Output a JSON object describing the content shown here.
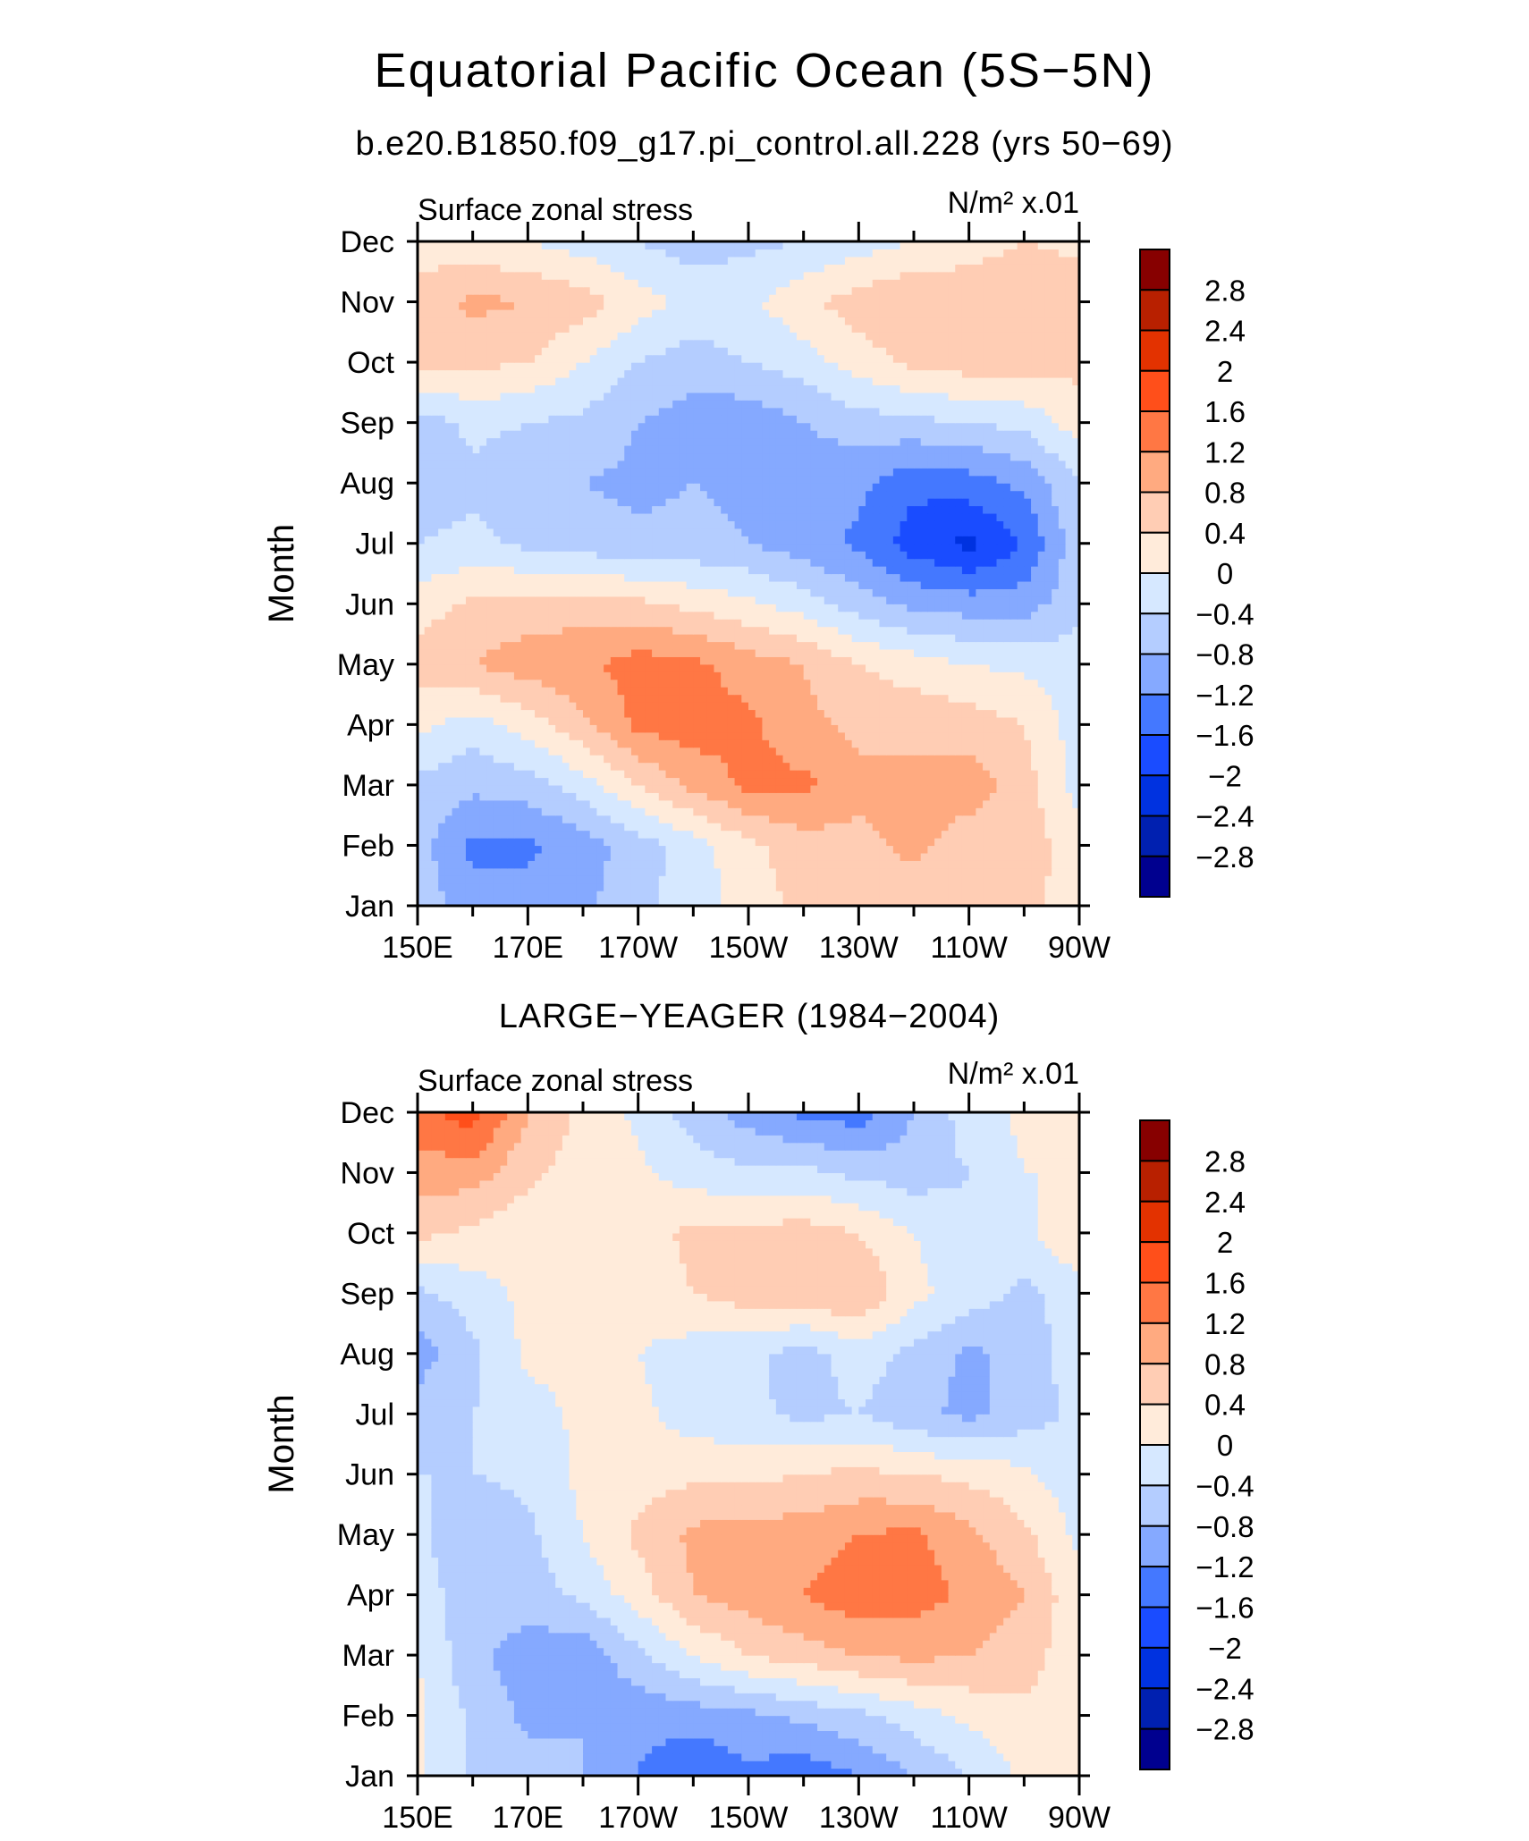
{
  "title": "Equatorial Pacific Ocean (5S−5N)",
  "subtitle": "b.e20.B1850.f09_g17.pi_control.all.228 (yrs 50−69)",
  "colorbar": {
    "levels": [
      "2.8",
      "2.4",
      "2",
      "1.6",
      "1.2",
      "0.8",
      "0.4",
      "0",
      "−0.4",
      "−0.8",
      "−1.2",
      "−1.6",
      "−2",
      "−2.4",
      "−2.8"
    ],
    "level_values": [
      -2.8,
      -2.4,
      -2,
      -1.6,
      -1.2,
      -0.8,
      -0.4,
      0,
      0.4,
      0.8,
      1.2,
      1.6,
      2,
      2.4,
      2.8
    ],
    "colors_low_to_high": [
      "#00008f",
      "#0020b0",
      "#0032e0",
      "#1a4cff",
      "#4478ff",
      "#85a9ff",
      "#b4cdff",
      "#d6e8ff",
      "#ffebda",
      "#ffcdb4",
      "#ffaa80",
      "#ff7744",
      "#ff4f1a",
      "#e33200",
      "#b82000",
      "#870000"
    ]
  },
  "chart_data": [
    {
      "type": "heatmap",
      "panel_title": "",
      "left_label": "Surface zonal stress",
      "right_label": "N/m² x.01",
      "ylabel": "Month",
      "xlabel": "",
      "x_tick_labels": [
        "150E",
        "170E",
        "170W",
        "150W",
        "130W",
        "110W",
        "90W"
      ],
      "y_tick_labels": [
        "Jan",
        "Feb",
        "Mar",
        "Apr",
        "May",
        "Jun",
        "Jul",
        "Aug",
        "Sep",
        "Oct",
        "Nov",
        "Dec"
      ],
      "x_longitudes_deg_east": [
        150,
        160,
        170,
        180,
        190,
        200,
        210,
        220,
        230,
        240,
        250,
        260,
        270
      ],
      "xlim": [
        150,
        270
      ],
      "z": [
        [
          -0.6,
          -1.0,
          -1.0,
          -0.9,
          -0.5,
          -0.2,
          0.2,
          0.5,
          0.6,
          0.6,
          0.6,
          0.5,
          0.2
        ],
        [
          -0.6,
          -1.3,
          -1.3,
          -1.0,
          -0.6,
          -0.2,
          0.3,
          0.6,
          0.7,
          0.9,
          0.6,
          0.6,
          0.2
        ],
        [
          -0.5,
          -0.7,
          -0.6,
          -0.2,
          0.4,
          0.9,
          1.3,
          1.3,
          0.9,
          0.9,
          1.0,
          0.6,
          -0.2
        ],
        [
          0.1,
          -0.2,
          0.2,
          0.7,
          1.3,
          1.4,
          1.3,
          0.9,
          0.7,
          0.7,
          0.6,
          0.4,
          -0.2
        ],
        [
          0.6,
          0.8,
          1.0,
          1.1,
          1.4,
          1.3,
          1.0,
          0.8,
          0.4,
          0.2,
          0.0,
          -0.1,
          -0.2
        ],
        [
          0.2,
          0.5,
          0.6,
          0.6,
          0.5,
          0.3,
          0.1,
          -0.2,
          -0.6,
          -0.9,
          -1.0,
          -1.0,
          -0.5
        ],
        [
          -0.4,
          -0.3,
          -0.5,
          -0.6,
          -0.7,
          -0.7,
          -0.8,
          -1.0,
          -1.3,
          -1.8,
          -2.1,
          -1.6,
          -0.5
        ],
        [
          -0.6,
          -0.5,
          -0.7,
          -0.8,
          -0.9,
          -0.8,
          -0.9,
          -1.0,
          -1.1,
          -1.5,
          -1.4,
          -1.1,
          -0.4
        ],
        [
          -0.6,
          -0.3,
          -0.4,
          -0.5,
          -0.8,
          -1.0,
          -1.1,
          -0.8,
          -0.6,
          -0.5,
          -0.4,
          -0.3,
          0.2
        ],
        [
          0.5,
          0.5,
          0.4,
          0.0,
          -0.4,
          -0.6,
          -0.4,
          -0.2,
          0.2,
          0.5,
          0.6,
          0.6,
          0.5
        ],
        [
          0.6,
          0.9,
          0.8,
          0.6,
          0.2,
          -0.1,
          -0.1,
          0.3,
          0.6,
          0.8,
          0.7,
          0.8,
          0.6
        ],
        [
          0.2,
          0.1,
          0.0,
          -0.2,
          -0.4,
          -0.6,
          -0.5,
          -0.4,
          -0.2,
          0.0,
          0.2,
          0.4,
          0.3
        ]
      ]
    },
    {
      "type": "heatmap",
      "panel_title": "LARGE−YEAGER (1984−2004)",
      "left_label": "Surface zonal stress",
      "right_label": "N/m² x.01",
      "ylabel": "Month",
      "xlabel": "",
      "x_tick_labels": [
        "150E",
        "170E",
        "170W",
        "150W",
        "130W",
        "110W",
        "90W"
      ],
      "y_tick_labels": [
        "Jan",
        "Feb",
        "Mar",
        "Apr",
        "May",
        "Jun",
        "Jul",
        "Aug",
        "Sep",
        "Oct",
        "Nov",
        "Dec"
      ],
      "x_longitudes_deg_east": [
        150,
        160,
        170,
        180,
        190,
        200,
        210,
        220,
        230,
        240,
        250,
        260,
        270
      ],
      "xlim": [
        150,
        270
      ],
      "z": [
        [
          0.1,
          -0.5,
          -0.6,
          -0.8,
          -1.2,
          -1.6,
          -1.3,
          -1.5,
          -1.2,
          -0.8,
          -0.4,
          0.1,
          0.2
        ],
        [
          0.1,
          -0.5,
          -0.9,
          -0.8,
          -1.1,
          -1.0,
          -0.9,
          -0.7,
          -0.5,
          -0.2,
          0.1,
          0.3,
          0.2
        ],
        [
          0.0,
          -0.7,
          -1.0,
          -1.1,
          -0.5,
          0.0,
          0.4,
          0.6,
          0.8,
          0.9,
          0.8,
          0.6,
          0.1
        ],
        [
          -0.2,
          -0.6,
          -0.6,
          -0.3,
          0.2,
          0.8,
          1.0,
          1.2,
          1.5,
          1.4,
          1.1,
          0.8,
          0.1
        ],
        [
          -0.3,
          -0.8,
          -0.5,
          0.0,
          0.5,
          0.9,
          1.0,
          1.0,
          1.2,
          1.3,
          0.9,
          0.5,
          -0.1
        ],
        [
          -0.4,
          -0.4,
          -0.3,
          0.1,
          0.2,
          0.3,
          0.3,
          0.4,
          0.5,
          0.4,
          0.3,
          0.1,
          -0.3
        ],
        [
          -0.6,
          -0.4,
          -0.2,
          0.1,
          0.1,
          -0.2,
          -0.3,
          -0.5,
          -0.4,
          -0.7,
          -0.9,
          -0.6,
          -0.3
        ],
        [
          -1.0,
          -0.5,
          0.1,
          0.2,
          0.0,
          -0.2,
          -0.3,
          -0.6,
          -0.2,
          -0.5,
          -0.9,
          -0.6,
          -0.2
        ],
        [
          -0.5,
          -0.2,
          0.1,
          0.2,
          0.2,
          0.4,
          0.6,
          0.7,
          0.8,
          0.1,
          -0.2,
          -0.5,
          -0.2
        ],
        [
          0.5,
          0.3,
          0.1,
          0.2,
          0.2,
          0.5,
          0.5,
          0.6,
          0.4,
          0.0,
          -0.3,
          -0.1,
          0.4
        ],
        [
          1.0,
          1.0,
          0.5,
          0.2,
          0.1,
          -0.2,
          -0.3,
          -0.3,
          -0.5,
          -0.6,
          -0.4,
          0.0,
          0.0
        ],
        [
          1.5,
          1.8,
          0.8,
          0.3,
          -0.1,
          -0.6,
          -1.0,
          -1.3,
          -1.4,
          -0.8,
          -0.2,
          0.1,
          0.1
        ]
      ]
    }
  ]
}
